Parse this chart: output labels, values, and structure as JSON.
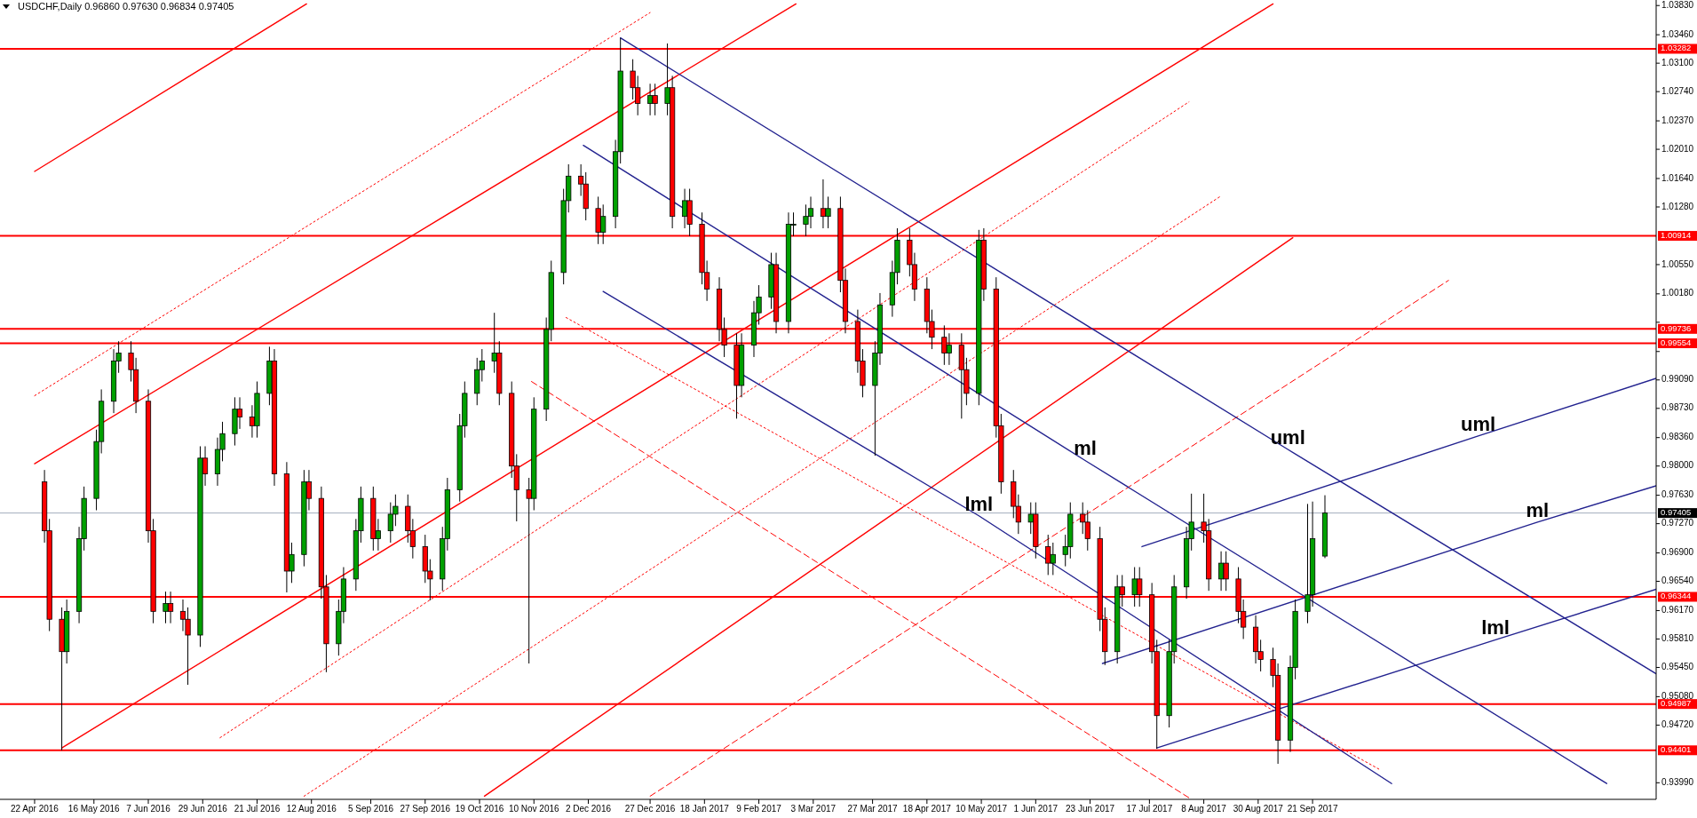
{
  "chart_data": {
    "type": "candlestick",
    "title": "USDCHF,Daily 0.96860 0.97630 0.96834 0.97405",
    "colors": [
      "#ff0000",
      "#ff0000",
      "#ff0000",
      "#00a000",
      "#00a000",
      "#00a000",
      "#00a000",
      "#00a000",
      "#00a000",
      "#00a000",
      "#ff0000",
      "#ff0000",
      "#ff0000",
      "#ff0000",
      "#00a000",
      "#ff0000",
      "#ff0000",
      "#ff0000",
      "#00a000",
      "#ff0000",
      "#00a000",
      "#00a000",
      "#00a000",
      "#ff0000",
      "#ff0000",
      "#00a000",
      "#00a000",
      "#ff0000",
      "#ff0000",
      "#00a000",
      "#00a000",
      "#ff0000",
      "#ff0000",
      "#ff0000",
      "#00a000",
      "#00a000",
      "#00a000",
      "#00a000",
      "#ff0000",
      "#00a000",
      "#00a000",
      "#00a000",
      "#ff0000",
      "#ff0000",
      "#ff0000",
      "#ff0000",
      "#00a000",
      "#00a000",
      "#00a000",
      "#00a000",
      "#00a000",
      "#00a000",
      "#00a000",
      "#ff0000",
      "#ff0000",
      "#ff0000",
      "#ff0000",
      "#00a000",
      "#00a000",
      "#00a000",
      "#00a000",
      "#00a000",
      "#ff0000",
      "#ff0000",
      "#ff0000",
      "#00a000",
      "#00a000",
      "#00a000",
      "#ff0000",
      "#ff0000",
      "#00a000",
      "#ff0000",
      "#00a000",
      "#ff0000",
      "#00a000",
      "#ff0000",
      "#ff0000",
      "#ff0000",
      "#ff0000",
      "#ff0000",
      "#ff0000",
      "#00a000",
      "#00a000",
      "#00a000",
      "#00a000",
      "#ff0000",
      "#00a000",
      "#00a000",
      "#00a000",
      "#00a000",
      "#ff0000",
      "#00a000",
      "#ff0000",
      "#ff0000",
      "#ff0000",
      "#ff0000",
      "#00a000",
      "#00a000",
      "#00a000",
      "#00a000",
      "#ff0000",
      "#ff0000",
      "#ff0000",
      "#ff0000",
      "#ff0000",
      "#00a000",
      "#ff0000",
      "#ff0000",
      "#00a000",
      "#ff0000",
      "#ff0000",
      "#ff0000",
      "#ff0000",
      "#ff0000",
      "#00a000",
      "#ff0000",
      "#ff0000",
      "#00a000",
      "#00a000",
      "#00a000",
      "#ff0000",
      "#ff0000",
      "#ff0000",
      "#ff0000",
      "#00a000",
      "#ff0000",
      "#00a000",
      "#ff0000",
      "#ff0000",
      "#ff0000",
      "#00a000",
      "#00a000",
      "#00a000",
      "#00a000",
      "#ff0000",
      "#ff0000",
      "#00a000",
      "#ff0000",
      "#ff0000",
      "#ff0000",
      "#ff0000",
      "#ff0000",
      "#ff0000",
      "#ff0000",
      "#00a000",
      "#00a000",
      "#00a000",
      "#00a000",
      "#00a000"
    ],
    "xlim": [
      "2016-04-08",
      "2018-02-07"
    ],
    "ylim": [
      0.9378,
      1.039
    ],
    "xticks": [
      {
        "value": "2016-04-22",
        "label": "22 Apr 2016"
      },
      {
        "value": "2016-05-16",
        "label": "16 May 2016"
      },
      {
        "value": "2016-06-07",
        "label": "7 Jun 2016"
      },
      {
        "value": "2016-06-29",
        "label": "29 Jun 2016"
      },
      {
        "value": "2016-07-21",
        "label": "21 Jul 2016"
      },
      {
        "value": "2016-08-12",
        "label": "12 Aug 2016"
      },
      {
        "value": "2016-09-05",
        "label": "5 Sep 2016"
      },
      {
        "value": "2016-09-27",
        "label": "27 Sep 2016"
      },
      {
        "value": "2016-10-19",
        "label": "19 Oct 2016"
      },
      {
        "value": "2016-11-10",
        "label": "10 Nov 2016"
      },
      {
        "value": "2016-12-02",
        "label": "2 Dec 2016"
      },
      {
        "value": "2016-12-27",
        "label": "27 Dec 2016"
      },
      {
        "value": "2017-01-18",
        "label": "18 Jan 2017"
      },
      {
        "value": "2017-02-09",
        "label": "9 Feb 2017"
      },
      {
        "value": "2017-03-03",
        "label": "3 Mar 2017"
      },
      {
        "value": "2017-03-27",
        "label": "27 Mar 2017"
      },
      {
        "value": "2017-04-18",
        "label": "18 Apr 2017"
      },
      {
        "value": "2017-05-10",
        "label": "10 May 2017"
      },
      {
        "value": "2017-06-01",
        "label": "1 Jun 2017"
      },
      {
        "value": "2017-06-23",
        "label": "23 Jun 2017"
      },
      {
        "value": "2017-07-17",
        "label": "17 Jul 2017"
      },
      {
        "value": "2017-08-08",
        "label": "8 Aug 2017"
      },
      {
        "value": "2017-08-30",
        "label": "30 Aug 2017"
      },
      {
        "value": "2017-09-21",
        "label": "21 Sep 2017"
      }
    ],
    "yticks": [
      {
        "value": 1.0383,
        "label": "1.03830"
      },
      {
        "value": 1.0346,
        "label": "1.03460"
      },
      {
        "value": 1.031,
        "label": "1.03100"
      },
      {
        "value": 1.0274,
        "label": "1.02740"
      },
      {
        "value": 1.0237,
        "label": "1.02370"
      },
      {
        "value": 1.0201,
        "label": "1.02010"
      },
      {
        "value": 1.0164,
        "label": "1.01640"
      },
      {
        "value": 1.0128,
        "label": "1.01280"
      },
      {
        "value": 1.0055,
        "label": "1.00550"
      },
      {
        "value": 1.0018,
        "label": "1.00180"
      },
      {
        "value": 0.9982,
        "label": null
      },
      {
        "value": 0.9945,
        "label": null
      },
      {
        "value": 0.9909,
        "label": "0.99090"
      },
      {
        "value": 0.9873,
        "label": "0.98730"
      },
      {
        "value": 0.9836,
        "label": "0.98360"
      },
      {
        "value": 0.98,
        "label": "0.98000"
      },
      {
        "value": 0.9763,
        "label": "0.97630"
      },
      {
        "value": 0.9727,
        "label": "0.97270"
      },
      {
        "value": 0.969,
        "label": "0.96900"
      },
      {
        "value": 0.9654,
        "label": "0.96540"
      },
      {
        "value": 0.9617,
        "label": "0.96170"
      },
      {
        "value": 0.9581,
        "label": "0.95810"
      },
      {
        "value": 0.9545,
        "label": "0.95450"
      },
      {
        "value": 0.9508,
        "label": "0.95080"
      },
      {
        "value": 0.9472,
        "label": "0.94720"
      },
      {
        "value": 0.9399,
        "label": "0.93990"
      }
    ],
    "ref_lines": [
      {
        "axis": "y",
        "value": 1.03282,
        "label": "1.03282",
        "color": "#ff0000"
      },
      {
        "axis": "y",
        "value": 1.00914,
        "label": "1.00914",
        "color": "#ff0000"
      },
      {
        "axis": "y",
        "value": 0.99736,
        "label": "0.99736",
        "color": "#ff0000"
      },
      {
        "axis": "y",
        "value": 0.99554,
        "label": "0.99554",
        "color": "#ff0000"
      },
      {
        "axis": "y",
        "value": 0.97405,
        "label": "0.97405",
        "color": "#a3adbd"
      },
      {
        "axis": "y",
        "value": 0.96344,
        "label": "0.96344",
        "color": "#ff0000"
      },
      {
        "axis": "y",
        "value": 0.94987,
        "label": "0.94987",
        "color": "#ff0000"
      },
      {
        "axis": "y",
        "value": 0.94401,
        "label": "0.94401",
        "color": "#ff0000"
      }
    ],
    "annotations": [
      {
        "text": "ml",
        "x": "2017-06-21",
        "y": 0.9807
      },
      {
        "text": "uml",
        "x": "2017-09-11",
        "y": 0.9821
      },
      {
        "text": "lml",
        "x": "2017-05-09",
        "y": 0.9737
      },
      {
        "text": "uml",
        "x": "2017-11-27",
        "y": 0.9838
      },
      {
        "text": "ml",
        "x": "2017-12-21",
        "y": 0.9729
      },
      {
        "text": "lml",
        "x": "2017-12-04",
        "y": 0.958
      }
    ],
    "series": [
      {
        "type": "line",
        "color": "#ff0000",
        "line_style": "solid",
        "x": [
          "2016-04-22",
          "2016-08-10"
        ],
        "values": [
          1.0173,
          1.0385
        ]
      },
      {
        "type": "line",
        "color": "#ff0000",
        "line_style": "solid",
        "x": [
          "2016-04-22",
          "2017-02-24"
        ],
        "values": [
          0.9803,
          1.0385
        ]
      },
      {
        "type": "line",
        "color": "#ff0000",
        "line_style": "solid",
        "x": [
          "2016-05-03",
          "2017-09-05"
        ],
        "values": [
          0.9443,
          1.0385
        ]
      },
      {
        "type": "line",
        "color": "#ff0000",
        "line_style": "solid",
        "x": [
          "2016-10-21",
          "2017-09-13"
        ],
        "values": [
          0.9382,
          1.0089
        ]
      },
      {
        "type": "line",
        "color": "#ff0000",
        "line_style": "dotted",
        "x": [
          "2016-04-22",
          "2016-12-27"
        ],
        "values": [
          0.9889,
          1.0374
        ]
      },
      {
        "type": "line",
        "color": "#ff0000",
        "line_style": "dotted",
        "x": [
          "2016-07-06",
          "2017-08-02"
        ],
        "values": [
          0.9456,
          1.0261
        ]
      },
      {
        "type": "line",
        "color": "#ff0000",
        "line_style": "dotted",
        "x": [
          "2016-08-09",
          "2017-08-15"
        ],
        "values": [
          0.9382,
          1.0142
        ]
      },
      {
        "type": "line",
        "color": "#ff0000",
        "line_style": "dashed",
        "x": [
          "2016-12-27",
          "2017-11-15"
        ],
        "values": [
          0.9382,
          1.0035
        ]
      },
      {
        "type": "line",
        "color": "#ff0000",
        "line_style": "dotted",
        "x": [
          "2016-11-23",
          "2017-10-18"
        ],
        "values": [
          0.9988,
          0.9416
        ]
      },
      {
        "type": "line",
        "color": "#ff0000",
        "line_style": "dashed",
        "x": [
          "2016-11-09",
          "2017-08-02"
        ],
        "values": [
          0.9907,
          0.938
        ]
      },
      {
        "type": "line",
        "color": "#22228f",
        "line_style": "solid",
        "x": [
          "2016-12-15",
          "2017-09-11",
          "2018-02-07"
        ],
        "values": [
          1.0342,
          0.9821,
          0.9537
        ]
      },
      {
        "type": "line",
        "color": "#22228f",
        "line_style": "solid",
        "x": [
          "2016-11-30",
          "2017-06-21",
          "2018-01-18"
        ],
        "values": [
          1.0206,
          0.9807,
          0.9398
        ]
      },
      {
        "type": "line",
        "color": "#22228f",
        "line_style": "solid",
        "x": [
          "2016-12-08",
          "2017-05-09",
          "2017-10-23"
        ],
        "values": [
          1.0021,
          0.9737,
          0.9398
        ]
      },
      {
        "type": "line",
        "color": "#22228f",
        "line_style": "solid",
        "x": [
          "2017-07-14",
          "2017-11-27",
          "2018-02-07"
        ],
        "values": [
          0.9698,
          0.9838,
          0.9911
        ]
      },
      {
        "type": "line",
        "color": "#22228f",
        "line_style": "solid",
        "x": [
          "2017-06-28",
          "2017-12-21",
          "2018-02-07"
        ],
        "values": [
          0.955,
          0.9729,
          0.9775
        ]
      },
      {
        "type": "line",
        "color": "#22228f",
        "line_style": "solid",
        "x": [
          "2017-07-20",
          "2017-12-04",
          "2018-02-07"
        ],
        "values": [
          0.9443,
          0.958,
          0.9644
        ]
      }
    ],
    "x": [
      "2016-04-26",
      "2016-04-28",
      "2016-05-03",
      "2016-05-05",
      "2016-05-10",
      "2016-05-12",
      "2016-05-17",
      "2016-05-19",
      "2016-05-24",
      "2016-05-26",
      "2016-05-31",
      "2016-06-02",
      "2016-06-07",
      "2016-06-09",
      "2016-06-14",
      "2016-06-16",
      "2016-06-21",
      "2016-06-23",
      "2016-06-28",
      "2016-06-30",
      "2016-07-05",
      "2016-07-07",
      "2016-07-12",
      "2016-07-14",
      "2016-07-19",
      "2016-07-21",
      "2016-07-26",
      "2016-07-28",
      "2016-08-02",
      "2016-08-04",
      "2016-08-09",
      "2016-08-11",
      "2016-08-16",
      "2016-08-18",
      "2016-08-23",
      "2016-08-25",
      "2016-08-30",
      "2016-09-01",
      "2016-09-06",
      "2016-09-08",
      "2016-09-13",
      "2016-09-15",
      "2016-09-20",
      "2016-09-22",
      "2016-09-27",
      "2016-09-29",
      "2016-10-04",
      "2016-10-06",
      "2016-10-11",
      "2016-10-13",
      "2016-10-18",
      "2016-10-20",
      "2016-10-25",
      "2016-10-27",
      "2016-11-01",
      "2016-11-03",
      "2016-11-08",
      "2016-11-10",
      "2016-11-15",
      "2016-11-17",
      "2016-11-22",
      "2016-11-24",
      "2016-11-29",
      "2016-12-01",
      "2016-12-06",
      "2016-12-08",
      "2016-12-13",
      "2016-12-15",
      "2016-12-20",
      "2016-12-22",
      "2016-12-27",
      "2016-12-29",
      "2017-01-03",
      "2017-01-05",
      "2017-01-10",
      "2017-01-12",
      "2017-01-17",
      "2017-01-19",
      "2017-01-24",
      "2017-01-26",
      "2017-01-31",
      "2017-02-02",
      "2017-02-07",
      "2017-02-09",
      "2017-02-14",
      "2017-02-16",
      "2017-02-21",
      "2017-02-23",
      "2017-02-28",
      "2017-03-02",
      "2017-03-07",
      "2017-03-09",
      "2017-03-14",
      "2017-03-16",
      "2017-03-21",
      "2017-03-23",
      "2017-03-28",
      "2017-03-30",
      "2017-04-04",
      "2017-04-06",
      "2017-04-11",
      "2017-04-13",
      "2017-04-18",
      "2017-04-20",
      "2017-04-25",
      "2017-04-27",
      "2017-05-02",
      "2017-05-04",
      "2017-05-09",
      "2017-05-11",
      "2017-05-16",
      "2017-05-18",
      "2017-05-23",
      "2017-05-25",
      "2017-05-30",
      "2017-06-01",
      "2017-06-06",
      "2017-06-08",
      "2017-06-13",
      "2017-06-15",
      "2017-06-20",
      "2017-06-22",
      "2017-06-27",
      "2017-06-29",
      "2017-07-04",
      "2017-07-06",
      "2017-07-11",
      "2017-07-13",
      "2017-07-18",
      "2017-07-20",
      "2017-07-25",
      "2017-07-27",
      "2017-08-01",
      "2017-08-03",
      "2017-08-08",
      "2017-08-10",
      "2017-08-15",
      "2017-08-17",
      "2017-08-22",
      "2017-08-24",
      "2017-08-29",
      "2017-08-31",
      "2017-09-05",
      "2017-09-07",
      "2017-09-12",
      "2017-09-14",
      "2017-09-19",
      "2017-09-21",
      "2017-09-26"
    ],
    "ohlc": [
      [
        0.978,
        0.9795,
        0.9703,
        0.9718
      ],
      [
        0.9718,
        0.9733,
        0.9591,
        0.9606
      ],
      [
        0.9606,
        0.9621,
        0.944,
        0.9565
      ],
      [
        0.9565,
        0.9631,
        0.955,
        0.9616
      ],
      [
        0.9616,
        0.9723,
        0.9601,
        0.9708
      ],
      [
        0.9708,
        0.9774,
        0.9693,
        0.9759
      ],
      [
        0.9759,
        0.9846,
        0.9744,
        0.9831
      ],
      [
        0.9831,
        0.9897,
        0.9816,
        0.9882
      ],
      [
        0.9882,
        0.9948,
        0.9867,
        0.9933
      ],
      [
        0.9933,
        0.9958,
        0.9918,
        0.9943
      ],
      [
        0.9943,
        0.9958,
        0.9907,
        0.9922
      ],
      [
        0.9922,
        0.9937,
        0.9867,
        0.9882
      ],
      [
        0.9882,
        0.9897,
        0.9703,
        0.9718
      ],
      [
        0.9718,
        0.9733,
        0.9601,
        0.9616
      ],
      [
        0.9616,
        0.9641,
        0.9601,
        0.9626
      ],
      [
        0.9626,
        0.9641,
        0.9601,
        0.9616
      ],
      [
        0.9616,
        0.9631,
        0.9591,
        0.9606
      ],
      [
        0.9606,
        0.9621,
        0.9523,
        0.9586
      ],
      [
        0.9586,
        0.9825,
        0.9571,
        0.981
      ],
      [
        0.981,
        0.9825,
        0.9775,
        0.979
      ],
      [
        0.979,
        0.9836,
        0.9775,
        0.9821
      ],
      [
        0.9821,
        0.9856,
        0.9806,
        0.9841
      ],
      [
        0.9841,
        0.9887,
        0.9826,
        0.9872
      ],
      [
        0.9872,
        0.9887,
        0.9847,
        0.9862
      ],
      [
        0.9862,
        0.9877,
        0.9836,
        0.9851
      ],
      [
        0.9851,
        0.9907,
        0.9836,
        0.9892
      ],
      [
        0.9892,
        0.9951,
        0.9877,
        0.9933
      ],
      [
        0.9933,
        0.9948,
        0.9775,
        0.979
      ],
      [
        0.979,
        0.9805,
        0.964,
        0.9667
      ],
      [
        0.9667,
        0.9703,
        0.9652,
        0.9688
      ],
      [
        0.9688,
        0.9795,
        0.9673,
        0.978
      ],
      [
        0.978,
        0.9795,
        0.9744,
        0.9759
      ],
      [
        0.9759,
        0.9774,
        0.9632,
        0.9647
      ],
      [
        0.9647,
        0.9662,
        0.9539,
        0.9575
      ],
      [
        0.9575,
        0.9631,
        0.956,
        0.9616
      ],
      [
        0.9616,
        0.9672,
        0.9601,
        0.9657
      ],
      [
        0.9657,
        0.9733,
        0.9642,
        0.9718
      ],
      [
        0.9718,
        0.9774,
        0.9703,
        0.9759
      ],
      [
        0.9759,
        0.9774,
        0.9693,
        0.9708
      ],
      [
        0.9708,
        0.9733,
        0.9693,
        0.9718
      ],
      [
        0.9718,
        0.9754,
        0.9703,
        0.9739
      ],
      [
        0.9739,
        0.9764,
        0.9724,
        0.9749
      ],
      [
        0.9749,
        0.9764,
        0.9703,
        0.9718
      ],
      [
        0.9718,
        0.9733,
        0.9683,
        0.9698
      ],
      [
        0.9698,
        0.9713,
        0.9652,
        0.9667
      ],
      [
        0.9667,
        0.9682,
        0.963,
        0.9657
      ],
      [
        0.9657,
        0.9723,
        0.9642,
        0.9708
      ],
      [
        0.9708,
        0.9785,
        0.9693,
        0.977
      ],
      [
        0.977,
        0.9866,
        0.9755,
        0.9851
      ],
      [
        0.9851,
        0.9907,
        0.9836,
        0.9892
      ],
      [
        0.9892,
        0.9937,
        0.9877,
        0.9922
      ],
      [
        0.9922,
        0.9948,
        0.9907,
        0.9933
      ],
      [
        0.9933,
        0.9994,
        0.9918,
        0.9943
      ],
      [
        0.9943,
        0.9958,
        0.9877,
        0.9892
      ],
      [
        0.9892,
        0.9907,
        0.9785,
        0.98
      ],
      [
        0.98,
        0.9815,
        0.973,
        0.977
      ],
      [
        0.977,
        0.9785,
        0.955,
        0.9759
      ],
      [
        0.9759,
        0.9887,
        0.9744,
        0.9872
      ],
      [
        0.9872,
        0.9988,
        0.9857,
        0.9973
      ],
      [
        0.9973,
        1.006,
        0.9958,
        1.0045
      ],
      [
        1.0045,
        1.0151,
        1.003,
        1.0136
      ],
      [
        1.0136,
        1.0182,
        1.0121,
        1.0167
      ],
      [
        1.0167,
        1.0182,
        1.0142,
        1.0157
      ],
      [
        1.0157,
        1.0172,
        1.0111,
        1.0126
      ],
      [
        1.0126,
        1.0141,
        1.0081,
        1.0096
      ],
      [
        1.0096,
        1.0131,
        1.0081,
        1.0116
      ],
      [
        1.0116,
        1.0213,
        1.0101,
        1.0198
      ],
      [
        1.0198,
        1.0342,
        1.0183,
        1.03
      ],
      [
        1.03,
        1.0315,
        1.0264,
        1.0279
      ],
      [
        1.0279,
        1.0294,
        1.0244,
        1.0259
      ],
      [
        1.0259,
        1.0284,
        1.0244,
        1.0269
      ],
      [
        1.0269,
        1.0284,
        1.0244,
        1.0259
      ],
      [
        1.0259,
        1.0335,
        1.0244,
        1.0279
      ],
      [
        1.0279,
        1.0294,
        1.0101,
        1.0116
      ],
      [
        1.0116,
        1.0151,
        1.0101,
        1.0136
      ],
      [
        1.0136,
        1.0151,
        1.0091,
        1.0106
      ],
      [
        1.0106,
        1.0121,
        1.003,
        1.0045
      ],
      [
        1.0045,
        1.006,
        1.0009,
        1.0024
      ],
      [
        1.0024,
        1.0039,
        0.9958,
        0.9973
      ],
      [
        0.9973,
        0.9988,
        0.9938,
        0.9953
      ],
      [
        0.9953,
        0.9968,
        0.986,
        0.9902
      ],
      [
        0.9902,
        0.9968,
        0.9887,
        0.9953
      ],
      [
        0.9953,
        1.0009,
        0.9938,
        0.9994
      ],
      [
        0.9994,
        1.0029,
        0.9979,
        1.0014
      ],
      [
        1.0014,
        1.007,
        0.9999,
        1.0055
      ],
      [
        1.0055,
        1.007,
        0.9968,
        0.9983
      ],
      [
        0.9983,
        1.0121,
        0.9968,
        1.0106
      ],
      [
        1.0106,
        1.0121,
        1.0091,
        1.0106
      ],
      [
        1.0106,
        1.0131,
        1.0091,
        1.0116
      ],
      [
        1.0116,
        1.0141,
        1.0101,
        1.0126
      ],
      [
        1.0126,
        1.0163,
        1.0101,
        1.0116
      ],
      [
        1.0116,
        1.0141,
        1.0101,
        1.0126
      ],
      [
        1.0126,
        1.0141,
        1.002,
        1.0035
      ],
      [
        1.0035,
        1.005,
        0.9968,
        0.9983
      ],
      [
        0.9983,
        0.9998,
        0.9918,
        0.9933
      ],
      [
        0.9933,
        0.9948,
        0.9887,
        0.9902
      ],
      [
        0.9902,
        0.9958,
        0.9813,
        0.9943
      ],
      [
        0.9943,
        1.0019,
        0.9928,
        1.0004
      ],
      [
        1.0004,
        1.006,
        0.9989,
        1.0045
      ],
      [
        1.0045,
        1.0101,
        1.003,
        1.0086
      ],
      [
        1.0086,
        1.0101,
        1.004,
        1.0055
      ],
      [
        1.0055,
        1.007,
        1.0009,
        1.0024
      ],
      [
        1.0024,
        1.0039,
        0.9968,
        0.9983
      ],
      [
        0.9983,
        0.9998,
        0.9948,
        0.9963
      ],
      [
        0.9963,
        0.9978,
        0.9928,
        0.9943
      ],
      [
        0.9943,
        0.9968,
        0.9928,
        0.9953
      ],
      [
        0.9953,
        0.9968,
        0.986,
        0.9922
      ],
      [
        0.9922,
        0.9937,
        0.9877,
        0.9892
      ],
      [
        0.9892,
        1.0099,
        0.9877,
        1.0086
      ],
      [
        1.0086,
        1.0101,
        1.0009,
        1.0024
      ],
      [
        1.0024,
        1.0039,
        0.9836,
        0.9851
      ],
      [
        0.9851,
        0.9866,
        0.9765,
        0.978
      ],
      [
        0.978,
        0.9795,
        0.9734,
        0.9749
      ],
      [
        0.9749,
        0.9764,
        0.9714,
        0.9729
      ],
      [
        0.9729,
        0.9754,
        0.9714,
        0.9739
      ],
      [
        0.9739,
        0.9754,
        0.9683,
        0.9698
      ],
      [
        0.9698,
        0.9713,
        0.9662,
        0.9677
      ],
      [
        0.9677,
        0.9703,
        0.9662,
        0.9688
      ],
      [
        0.9688,
        0.9713,
        0.9673,
        0.9698
      ],
      [
        0.9698,
        0.9754,
        0.9683,
        0.9739
      ],
      [
        0.9739,
        0.9754,
        0.9714,
        0.9729
      ],
      [
        0.9729,
        0.9744,
        0.9693,
        0.9708
      ],
      [
        0.9708,
        0.9723,
        0.9591,
        0.9606
      ],
      [
        0.9606,
        0.9621,
        0.9548,
        0.9565
      ],
      [
        0.9565,
        0.9662,
        0.955,
        0.9647
      ],
      [
        0.9647,
        0.9662,
        0.9622,
        0.9637
      ],
      [
        0.9637,
        0.9672,
        0.9622,
        0.9657
      ],
      [
        0.9657,
        0.9672,
        0.9622,
        0.9637
      ],
      [
        0.9637,
        0.9652,
        0.955,
        0.9565
      ],
      [
        0.9565,
        0.958,
        0.9442,
        0.9484
      ],
      [
        0.9484,
        0.958,
        0.9469,
        0.9565
      ],
      [
        0.9565,
        0.9662,
        0.955,
        0.9647
      ],
      [
        0.9647,
        0.9723,
        0.9632,
        0.9708
      ],
      [
        0.9708,
        0.9765,
        0.9693,
        0.9729
      ],
      [
        0.9729,
        0.9765,
        0.9703,
        0.9718
      ],
      [
        0.9718,
        0.9733,
        0.9642,
        0.9657
      ],
      [
        0.9657,
        0.9692,
        0.9642,
        0.9677
      ],
      [
        0.9677,
        0.9692,
        0.9642,
        0.9657
      ],
      [
        0.9657,
        0.9672,
        0.9601,
        0.9616
      ],
      [
        0.9616,
        0.9631,
        0.9581,
        0.9596
      ],
      [
        0.9596,
        0.9611,
        0.955,
        0.9565
      ],
      [
        0.9565,
        0.958,
        0.954,
        0.9555
      ],
      [
        0.9555,
        0.957,
        0.952,
        0.9535
      ],
      [
        0.9535,
        0.955,
        0.9423,
        0.9453
      ],
      [
        0.9453,
        0.956,
        0.9438,
        0.9545
      ],
      [
        0.9545,
        0.9631,
        0.953,
        0.9616
      ],
      [
        0.9616,
        0.9752,
        0.9601,
        0.9637
      ],
      [
        0.9637,
        0.9755,
        0.9622,
        0.9708
      ],
      [
        0.9686,
        0.9763,
        0.96834,
        0.97405
      ]
    ]
  }
}
